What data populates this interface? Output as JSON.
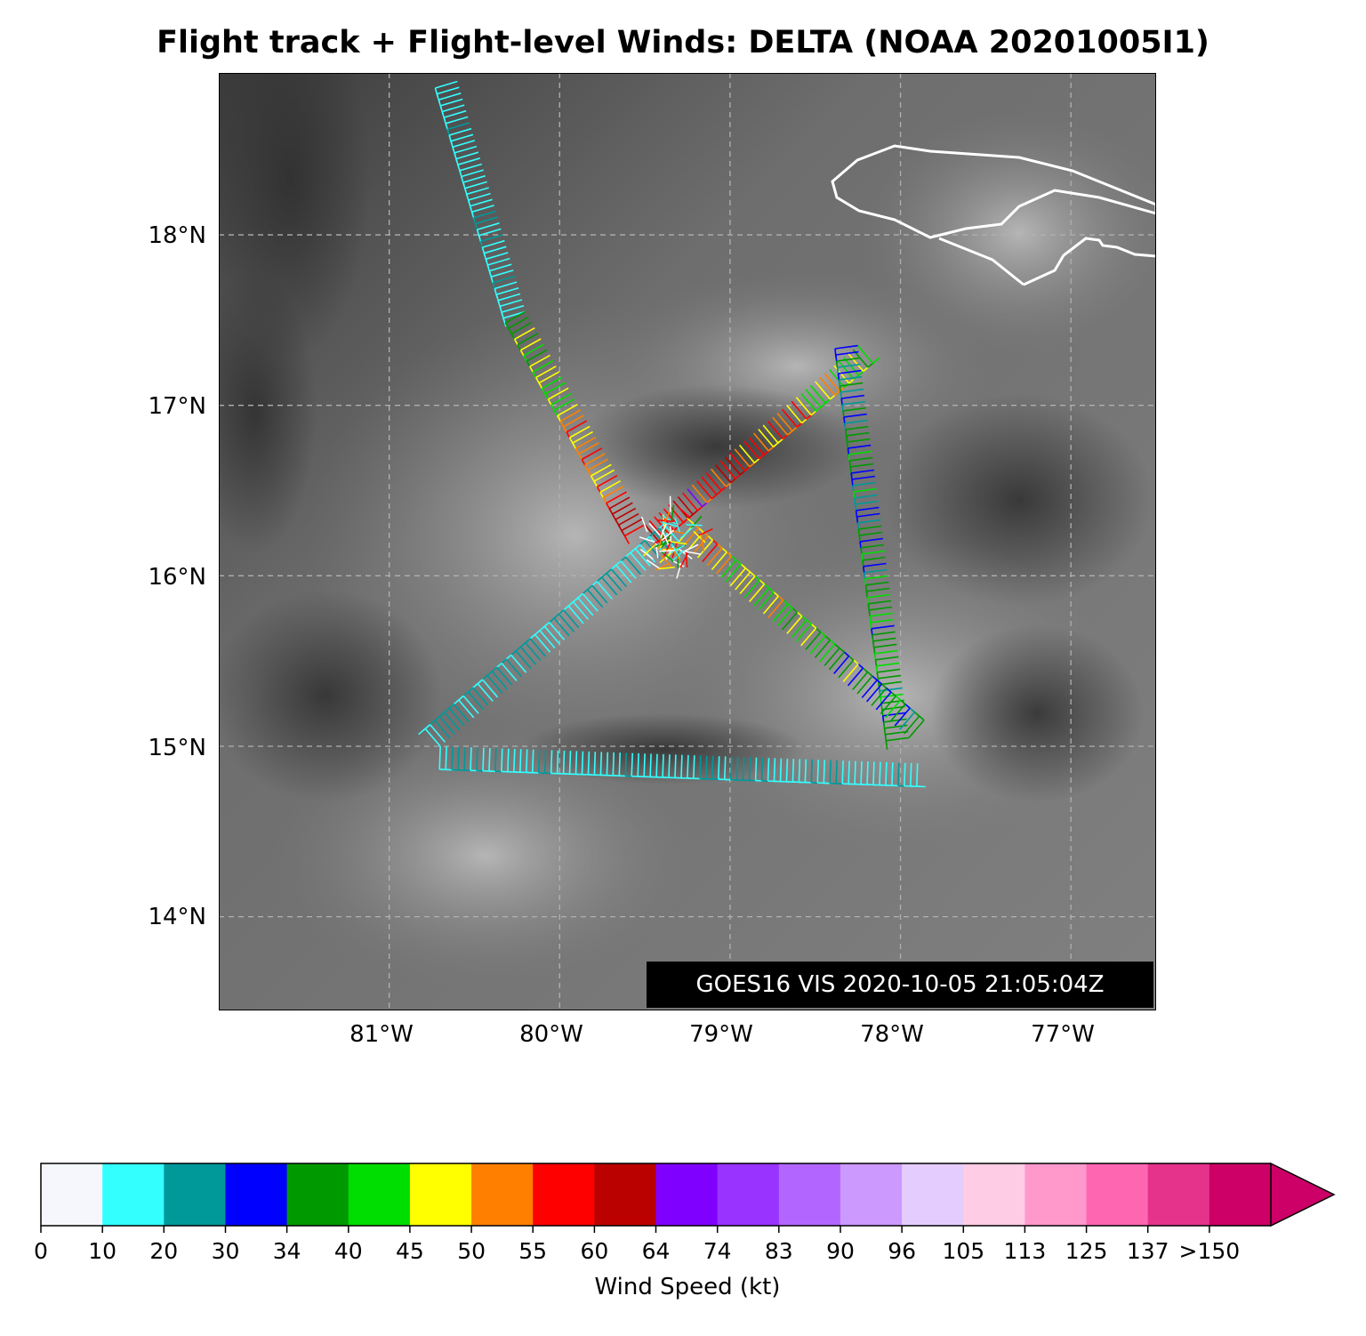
{
  "title": "Flight track + Flight-level Winds: DELTA (NOAA 20201005I1)",
  "stamp": "GOES16 VIS 2020-10-05 21:05:04Z",
  "map": {
    "lat_labels": [
      "18°N",
      "17°N",
      "16°N",
      "15°N",
      "14°N"
    ],
    "lon_labels": [
      "81°W",
      "80°W",
      "79°W",
      "78°W",
      "77°W"
    ],
    "gridlines": "dashed",
    "background": "satellite visible grayscale",
    "coastline_color": "#ffffff"
  },
  "colorbar": {
    "label": "Wind Speed (kt)",
    "ticks": [
      "0",
      "10",
      "20",
      "30",
      "34",
      "40",
      "45",
      "50",
      "55",
      "60",
      "64",
      "74",
      "83",
      "90",
      "96",
      "105",
      "113",
      "125",
      "137",
      ">150"
    ],
    "colors": [
      "#f5f7fd",
      "#33ffff",
      "#009999",
      "#0000ff",
      "#009900",
      "#00dd00",
      "#ffff00",
      "#ff8000",
      "#ff0000",
      "#bb0000",
      "#8000ff",
      "#9933ff",
      "#b366ff",
      "#cc99ff",
      "#e5ccff",
      "#ffcce5",
      "#ff99cc",
      "#ff66b2",
      "#e5338c",
      "#cc0066"
    ],
    "extend": "max"
  },
  "chart_data": {
    "type": "map",
    "track_legs": [
      {
        "from": [
          -80.6,
          18.9
        ],
        "to": [
          -80.2,
          17.55
        ],
        "wind_kt": 15
      },
      {
        "from": [
          -80.2,
          17.55
        ],
        "to": [
          -79.5,
          16.3
        ],
        "wind_kt": 40
      },
      {
        "from": [
          -79.5,
          16.3
        ],
        "to": [
          -78.25,
          17.35
        ],
        "wind_kt": 45
      },
      {
        "from": [
          -78.25,
          17.35
        ],
        "to": [
          -77.95,
          15.05
        ],
        "wind_kt": 35
      },
      {
        "from": [
          -77.95,
          15.05
        ],
        "to": [
          -79.3,
          16.2
        ],
        "wind_kt": 33
      },
      {
        "from": [
          -79.3,
          16.2
        ],
        "to": [
          -80.7,
          15.0
        ],
        "wind_kt": 20
      },
      {
        "from": [
          -80.7,
          15.0
        ],
        "to": [
          -77.9,
          14.9
        ],
        "wind_kt": 18
      }
    ]
  }
}
